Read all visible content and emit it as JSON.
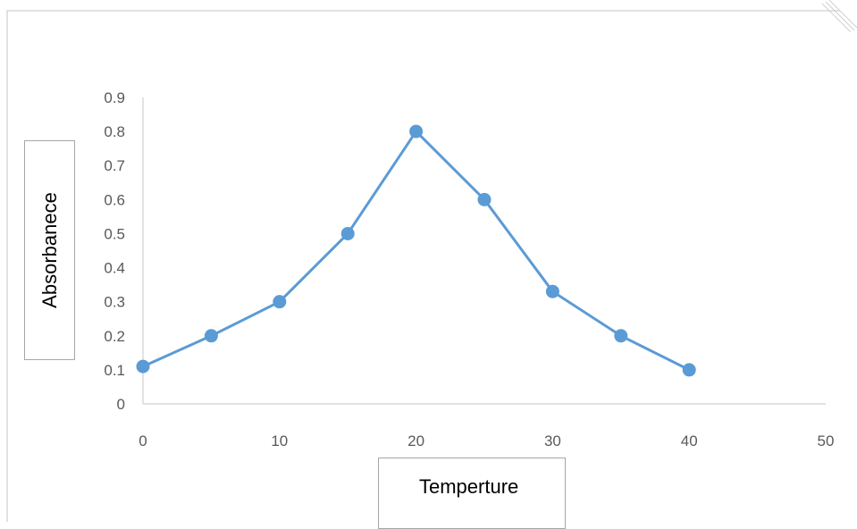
{
  "chart_data": {
    "type": "line",
    "title": "",
    "xlabel": "Temperture",
    "ylabel": "Absorbanece",
    "xlim": [
      0,
      50
    ],
    "ylim": [
      0,
      0.9
    ],
    "x_ticks": [
      "0",
      "10",
      "20",
      "30",
      "40",
      "50"
    ],
    "y_ticks": [
      "0",
      "0.1",
      "0.2",
      "0.3",
      "0.4",
      "0.5",
      "0.6",
      "0.7",
      "0.8",
      "0.9"
    ],
    "grid": false,
    "legend": "none",
    "series": [
      {
        "x": [
          0,
          5,
          10,
          15,
          20,
          25,
          30,
          35,
          40
        ],
        "values": [
          0.11,
          0.2,
          0.3,
          0.5,
          0.8,
          0.6,
          0.33,
          0.2,
          0.1
        ],
        "color": "#5b9bd5"
      }
    ]
  },
  "colors": {
    "series": "#5b9bd5",
    "axis": "#d9d9d9",
    "tick_text": "#595959",
    "frame": "#d9d9d9"
  }
}
